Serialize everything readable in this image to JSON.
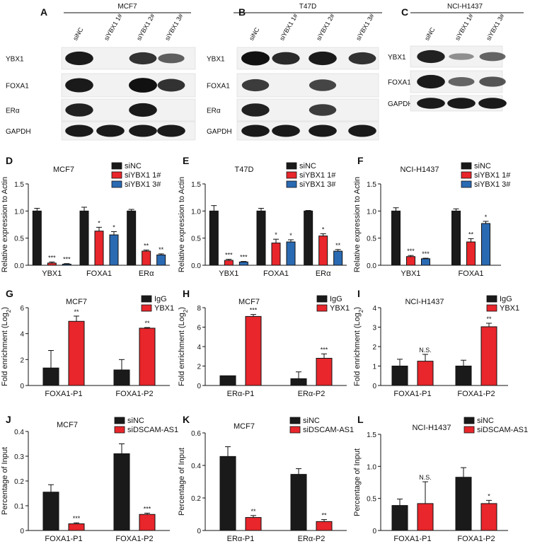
{
  "figure": {
    "colors": {
      "black": "#1a1a1a",
      "red": "#e8262b",
      "blue": "#2a6ab3",
      "blot_bg": "#f2f2f2"
    },
    "blots": [
      {
        "letter": "A",
        "cell_line": "MCF7",
        "lanes": [
          "siNC",
          "siYBX1 1#",
          "siYBX1 2#",
          "siYBX1 3#"
        ],
        "rows": [
          {
            "label": "YBX1",
            "intensity": [
              0.95,
              0.0,
              0.8,
              0.55
            ]
          },
          {
            "label": "FOXA1",
            "intensity": [
              0.95,
              0.0,
              1.0,
              0.8
            ]
          },
          {
            "label": "ERα",
            "intensity": [
              0.9,
              0.0,
              0.95,
              0.0
            ]
          },
          {
            "label": "GAPDH",
            "intensity": [
              0.95,
              0.95,
              0.95,
              0.95
            ]
          }
        ]
      },
      {
        "letter": "B",
        "cell_line": "T47D",
        "lanes": [
          "siNC",
          "siYBX1 1#",
          "siYBX1 2#",
          "siYBX1 3#"
        ],
        "rows": [
          {
            "label": "YBX1",
            "intensity": [
              1.0,
              0.85,
              0.95,
              0.8
            ]
          },
          {
            "label": "FOXA1",
            "intensity": [
              0.75,
              0.0,
              0.7,
              0.0
            ]
          },
          {
            "label": "ERα",
            "intensity": [
              0.9,
              0.0,
              0.75,
              0.0
            ]
          },
          {
            "label": "GAPDH",
            "intensity": [
              0.95,
              0.95,
              0.95,
              0.95
            ]
          }
        ]
      },
      {
        "letter": "C",
        "cell_line": "NCI-H1437",
        "lanes": [
          "siNC",
          "siYBX1 1#",
          "siYBX1 3#"
        ],
        "rows": [
          {
            "label": "YBX1",
            "intensity": [
              0.9,
              0.25,
              0.5
            ]
          },
          {
            "label": "FOXA1",
            "intensity": [
              0.95,
              0.5,
              0.6
            ]
          },
          {
            "label": "GAPDH",
            "intensity": [
              0.95,
              0.95,
              0.95
            ]
          }
        ]
      }
    ]
  },
  "chart_data": [
    {
      "letter": "D",
      "type": "bar",
      "title": "MCF7",
      "ylabel": "Relative expression to Actin",
      "ylim": [
        0,
        1.5
      ],
      "yticks": [
        "0.0",
        "0.5",
        "1.0",
        "1.5"
      ],
      "categories": [
        "YBX1",
        "FOXA1",
        "ERα"
      ],
      "series": [
        {
          "name": "siNC",
          "color": "black",
          "values": [
            1.0,
            1.0,
            1.0
          ],
          "errors": [
            0.05,
            0.07,
            0.03
          ],
          "stars": [
            "",
            "",
            ""
          ]
        },
        {
          "name": "siYBX1 1#",
          "color": "red",
          "values": [
            0.04,
            0.63,
            0.26
          ],
          "errors": [
            0.02,
            0.07,
            0.02
          ],
          "stars": [
            "***",
            "*",
            "**"
          ]
        },
        {
          "name": "siYBX1 3#",
          "color": "blue",
          "values": [
            0.02,
            0.56,
            0.19
          ],
          "errors": [
            0.01,
            0.06,
            0.02
          ],
          "stars": [
            "***",
            "*",
            "**"
          ]
        }
      ]
    },
    {
      "letter": "E",
      "type": "bar",
      "title": "T47D",
      "ylabel": "Relative expression to Actin",
      "ylim": [
        0,
        1.5
      ],
      "yticks": [
        "0.0",
        "0.5",
        "1.0",
        "1.5"
      ],
      "categories": [
        "YBX1",
        "FOXA1",
        "ERα"
      ],
      "series": [
        {
          "name": "siNC",
          "color": "black",
          "values": [
            1.0,
            1.0,
            1.0
          ],
          "errors": [
            0.1,
            0.05,
            0.01
          ],
          "stars": [
            "",
            "",
            ""
          ]
        },
        {
          "name": "siYBX1 1#",
          "color": "red",
          "values": [
            0.09,
            0.41,
            0.54
          ],
          "errors": [
            0.02,
            0.07,
            0.04
          ],
          "stars": [
            "***",
            "*",
            "*"
          ]
        },
        {
          "name": "siYBX1 3#",
          "color": "blue",
          "values": [
            0.06,
            0.43,
            0.26
          ],
          "errors": [
            0.01,
            0.04,
            0.03
          ],
          "stars": [
            "***",
            "*",
            "**"
          ]
        }
      ]
    },
    {
      "letter": "F",
      "type": "bar",
      "title": "NCI-H1437",
      "ylabel": "Relative expression to Actin",
      "ylim": [
        0,
        1.5
      ],
      "yticks": [
        "0.0",
        "0.5",
        "1.0",
        "1.5"
      ],
      "categories": [
        "YBX1",
        "FOXA1"
      ],
      "series": [
        {
          "name": "siNC",
          "color": "black",
          "values": [
            1.0,
            1.0
          ],
          "errors": [
            0.06,
            0.04
          ],
          "stars": [
            "",
            ""
          ]
        },
        {
          "name": "siYBX1 1#",
          "color": "red",
          "values": [
            0.16,
            0.43
          ],
          "errors": [
            0.02,
            0.06
          ],
          "stars": [
            "***",
            "**"
          ]
        },
        {
          "name": "siYBX1 3#",
          "color": "blue",
          "values": [
            0.12,
            0.77
          ],
          "errors": [
            0.01,
            0.04
          ],
          "stars": [
            "***",
            "*"
          ]
        }
      ]
    },
    {
      "letter": "G",
      "type": "bar",
      "title": "MCF7",
      "ylabel": "Fold enrichment (Log",
      "ylabel_sub": "2",
      "ylabel_tail": ")",
      "ylim": [
        0,
        6
      ],
      "yticks": [
        "0",
        "2",
        "4",
        "6"
      ],
      "categories": [
        "FOXA1-P1",
        "FOXA1-P2"
      ],
      "series": [
        {
          "name": "IgG",
          "color": "black",
          "values": [
            1.35,
            1.2
          ],
          "errors": [
            1.35,
            0.8
          ],
          "stars": [
            "",
            ""
          ]
        },
        {
          "name": "YBX1",
          "color": "red",
          "values": [
            4.95,
            4.42
          ],
          "errors": [
            0.4,
            0.05
          ],
          "stars": [
            "**",
            "**"
          ]
        }
      ]
    },
    {
      "letter": "H",
      "type": "bar",
      "title": "MCF7",
      "ylabel": "Fold enrichment (Log",
      "ylabel_sub": "2",
      "ylabel_tail": ")",
      "ylim": [
        0,
        8
      ],
      "yticks": [
        "0",
        "2",
        "4",
        "6",
        "8"
      ],
      "categories": [
        "ERα-P1",
        "ERα-P2"
      ],
      "series": [
        {
          "name": "IgG",
          "color": "black",
          "values": [
            1.0,
            0.7
          ],
          "errors": [
            0.0,
            0.7
          ],
          "stars": [
            "",
            ""
          ]
        },
        {
          "name": "YBX1",
          "color": "red",
          "values": [
            7.1,
            2.8
          ],
          "errors": [
            0.2,
            0.45
          ],
          "stars": [
            "***",
            "***"
          ]
        }
      ]
    },
    {
      "letter": "I",
      "type": "bar",
      "title": "NCI-H1437",
      "ylabel": "Fold enrichment (Log",
      "ylabel_sub": "2",
      "ylabel_tail": ")",
      "ylim": [
        0,
        4
      ],
      "yticks": [
        "0",
        "1",
        "2",
        "3",
        "4"
      ],
      "categories": [
        "FOXA1-P1",
        "FOXA1-P2"
      ],
      "series": [
        {
          "name": "IgG",
          "color": "black",
          "values": [
            1.0,
            1.0
          ],
          "errors": [
            0.35,
            0.3
          ],
          "stars": [
            "",
            ""
          ]
        },
        {
          "name": "YBX1",
          "color": "red",
          "values": [
            1.25,
            3.02
          ],
          "errors": [
            0.35,
            0.18
          ],
          "stars": [
            "N.S.",
            "**"
          ]
        }
      ]
    },
    {
      "letter": "J",
      "type": "bar",
      "title": "MCF7",
      "ylabel": "Percentage of Input",
      "ylim": [
        0,
        0.4
      ],
      "yticks": [
        "0",
        "0.1",
        "0.2",
        "0.3",
        "0.4"
      ],
      "categories": [
        "FOXA1-P1",
        "FOXA1-P2"
      ],
      "series": [
        {
          "name": "siNC",
          "color": "black",
          "values": [
            0.155,
            0.31
          ],
          "errors": [
            0.03,
            0.04
          ],
          "stars": [
            "",
            ""
          ]
        },
        {
          "name": "siDSCAM-AS1",
          "color": "red",
          "values": [
            0.027,
            0.065
          ],
          "errors": [
            0.004,
            0.005
          ],
          "stars": [
            "***",
            "***"
          ]
        }
      ]
    },
    {
      "letter": "K",
      "type": "bar",
      "title": "MCF7",
      "ylabel": "Percentage of Input",
      "ylim": [
        0,
        0.6
      ],
      "yticks": [
        "0",
        "0.2",
        "0.4",
        "0.6"
      ],
      "categories": [
        "ERα-P1",
        "ERα-P2"
      ],
      "series": [
        {
          "name": "siNC",
          "color": "black",
          "values": [
            0.455,
            0.345
          ],
          "errors": [
            0.06,
            0.035
          ],
          "stars": [
            "",
            ""
          ]
        },
        {
          "name": "siDSCAM-AS1",
          "color": "red",
          "values": [
            0.08,
            0.055
          ],
          "errors": [
            0.012,
            0.012
          ],
          "stars": [
            "**",
            "**"
          ]
        }
      ]
    },
    {
      "letter": "L",
      "type": "bar",
      "title": "NCI-H1437",
      "ylabel": "Percentage of Input",
      "ylim": [
        0,
        1.5
      ],
      "yticks": [
        "0",
        "0.5",
        "1.0",
        "1.5"
      ],
      "categories": [
        "FOXA1-P1",
        "FOXA1-P2"
      ],
      "series": [
        {
          "name": "siNC",
          "color": "black",
          "values": [
            0.39,
            0.83
          ],
          "errors": [
            0.1,
            0.15
          ],
          "stars": [
            "",
            ""
          ]
        },
        {
          "name": "siDSCAM-AS1",
          "color": "red",
          "values": [
            0.42,
            0.42
          ],
          "errors": [
            0.34,
            0.05
          ],
          "stars": [
            "N.S.",
            "*"
          ]
        }
      ]
    }
  ]
}
